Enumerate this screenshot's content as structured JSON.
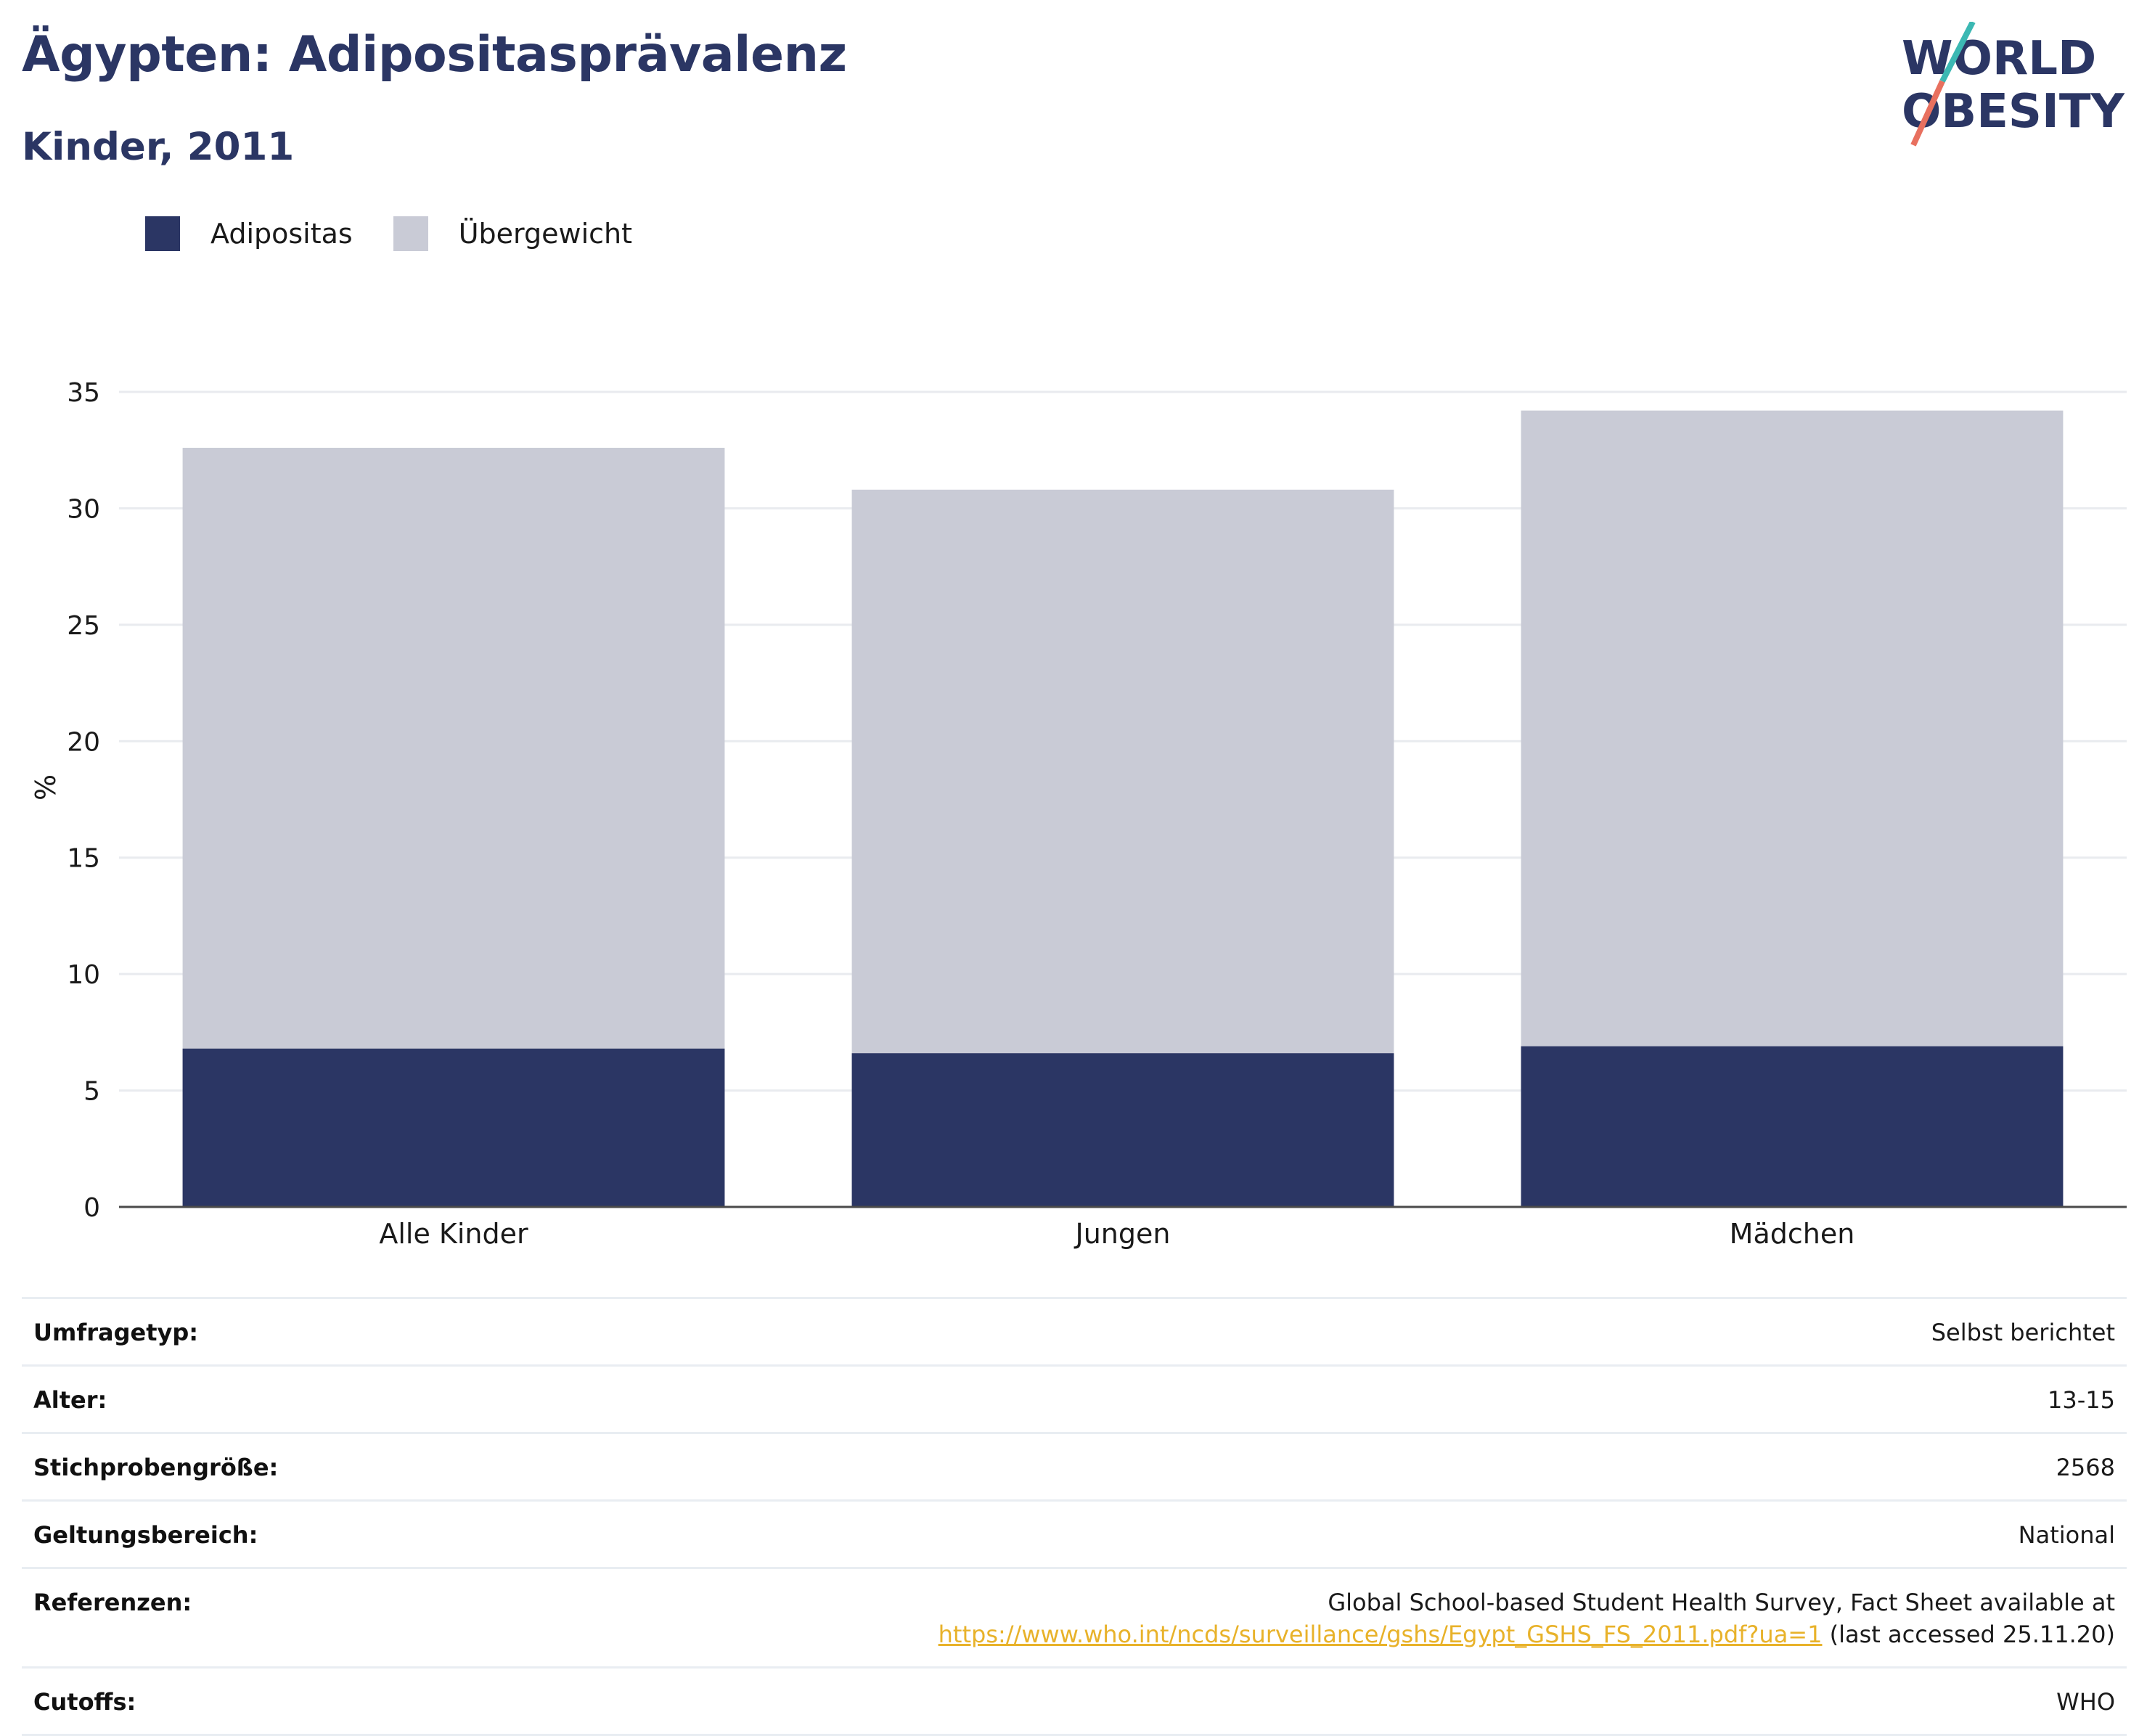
{
  "header": {
    "title": "Ägypten: Adipositasprävalenz",
    "subtitle": "Kinder, 2011"
  },
  "logo": {
    "line1": "WORLD",
    "line2": "OBESITY"
  },
  "colors": {
    "adipositas": "#2b3664",
    "uebergewicht": "#c9cbd6",
    "title": "#2b3664",
    "link": "#e8b22a",
    "logo_teal": "#3bb8b3",
    "logo_red": "#e8705f"
  },
  "legend": [
    {
      "label": "Adipositas",
      "color": "#2b3664"
    },
    {
      "label": "Übergewicht",
      "color": "#c9cbd6"
    }
  ],
  "chart_data": {
    "type": "bar",
    "stacked": false,
    "overlay": true,
    "categories": [
      "Alle Kinder",
      "Jungen",
      "Mädchen"
    ],
    "series": [
      {
        "name": "Übergewicht",
        "values": [
          32.6,
          30.8,
          34.2
        ]
      },
      {
        "name": "Adipositas",
        "values": [
          6.8,
          6.6,
          6.9
        ]
      }
    ],
    "ylabel": "%",
    "xlabel": "",
    "ylim": [
      0,
      35
    ],
    "yticks": [
      0,
      5,
      10,
      15,
      20,
      25,
      30,
      35
    ],
    "grid": true,
    "legend_position": "top-left"
  },
  "meta": [
    {
      "key": "Umfragetyp:",
      "value": "Selbst berichtet"
    },
    {
      "key": "Alter:",
      "value": "13-15"
    },
    {
      "key": "Stichprobengröße:",
      "value": "2568"
    },
    {
      "key": "Geltungsbereich:",
      "value": "National"
    },
    {
      "key": "Referenzen:",
      "value_line1": "Global School-based Student Health Survey, Fact Sheet available at",
      "value_link": "https://www.who.int/ncds/surveillance/gshs/Egypt_GSHS_FS_2011.pdf?ua=1",
      "value_suffix": " (last accessed 25.11.20)"
    },
    {
      "key": "Cutoffs:",
      "value": "WHO"
    }
  ]
}
